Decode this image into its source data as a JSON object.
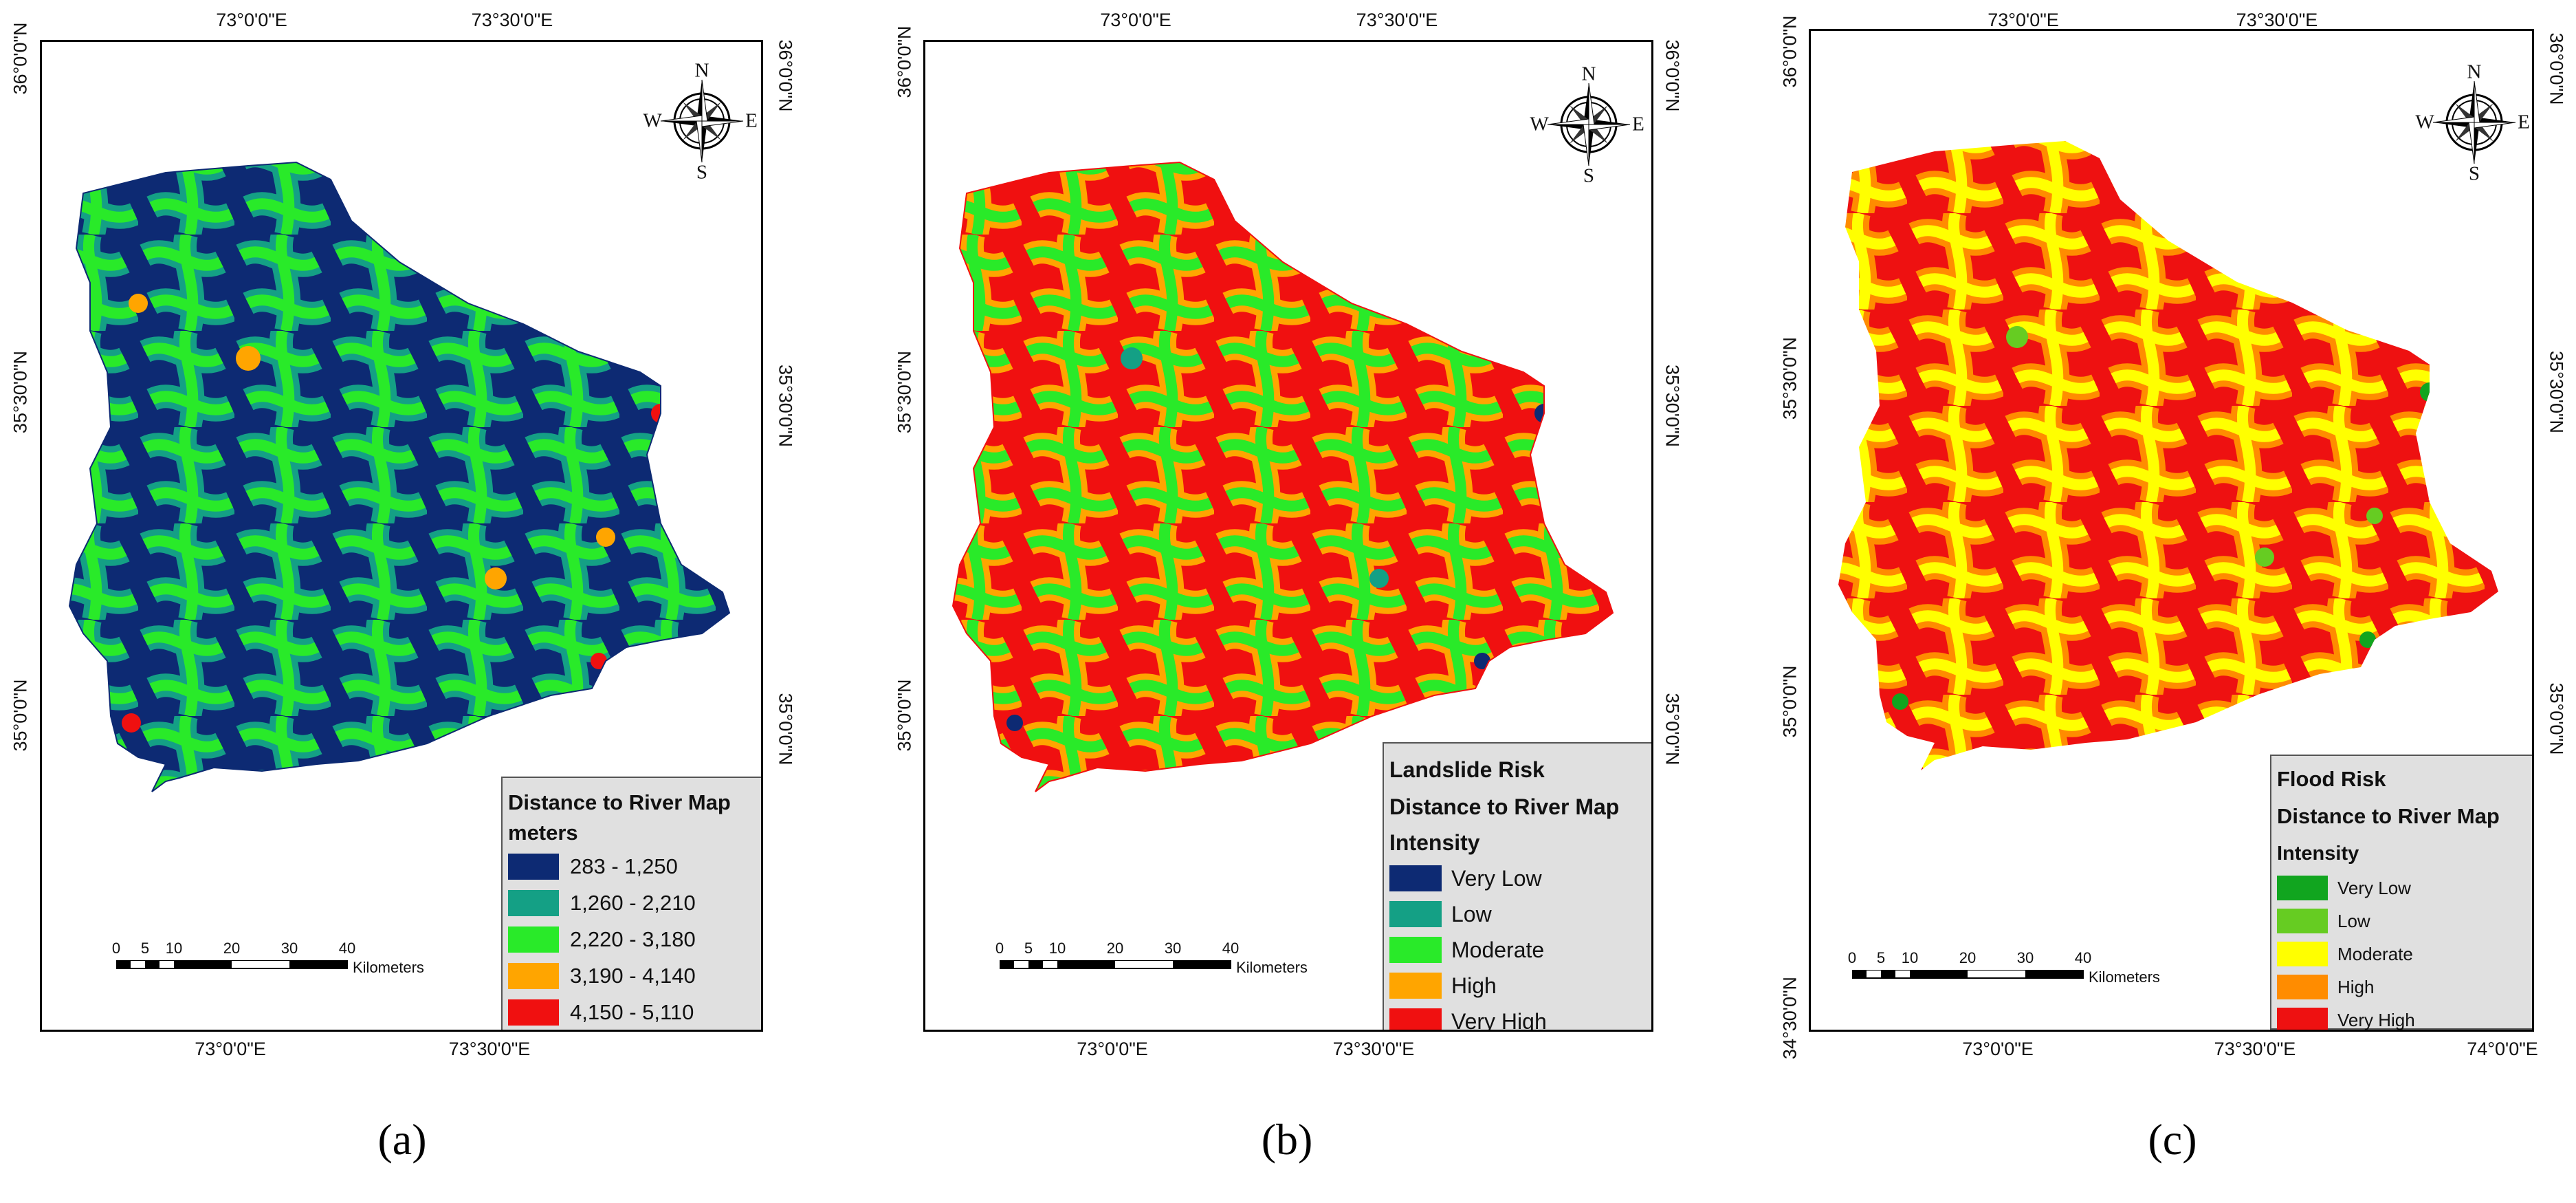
{
  "compass": {
    "n": "N",
    "e": "E",
    "s": "S",
    "w": "W"
  },
  "scale": {
    "ticks": [
      "0",
      "5",
      "10",
      "20",
      "30",
      "40"
    ],
    "unit": "Kilometers"
  },
  "panels": [
    {
      "caption": "(a)",
      "top_labels": [
        "73°0'0\"E",
        "73°30'0\"E"
      ],
      "bottom_labels": [
        "73°0'0\"E",
        "73°30'0\"E"
      ],
      "left_labels": [
        "36°0'0\"N",
        "35°30'0\"N",
        "35°0'0\"N"
      ],
      "right_labels": [
        "36°0'0\"N",
        "35°30'0\"N",
        "35°0'0\"N"
      ],
      "legend": {
        "title_lines": [
          "Distance to River Map",
          "meters"
        ],
        "items": [
          {
            "label": "283 - 1,250",
            "color": "#0d2a73"
          },
          {
            "label": "1,260 - 2,210",
            "color": "#14a085"
          },
          {
            "label": "2,220 - 3,180",
            "color": "#29ea29"
          },
          {
            "label": "3,190 - 4,140",
            "color": "#ffa500"
          },
          {
            "label": "4,150 - 5,110",
            "color": "#f01010"
          }
        ]
      }
    },
    {
      "caption": "(b)",
      "top_labels": [
        "73°0'0\"E",
        "73°30'0\"E"
      ],
      "bottom_labels": [
        "73°0'0\"E",
        "73°30'0\"E"
      ],
      "left_labels": [
        "36°0'0\"N",
        "35°30'0\"N",
        "35°0'0\"N"
      ],
      "right_labels": [
        "36°0'0\"N",
        "35°30'0\"N",
        "35°0'0\"N"
      ],
      "legend": {
        "title_lines": [
          "Landslide Risk",
          "Distance to River Map",
          "Intensity"
        ],
        "items": [
          {
            "label": "Very Low",
            "color": "#0d2a73"
          },
          {
            "label": "Low",
            "color": "#14a085"
          },
          {
            "label": "Moderate",
            "color": "#29ea29"
          },
          {
            "label": "High",
            "color": "#ffa500"
          },
          {
            "label": "Very High",
            "color": "#f01010"
          }
        ]
      }
    },
    {
      "caption": "(c)",
      "top_labels": [
        "73°0'0\"E",
        "73°30'0\"E"
      ],
      "bottom_labels": [
        "73°0'0\"E",
        "73°30'0\"E",
        "74°0'0\"E"
      ],
      "left_labels": [
        "36°0'0\"N",
        "35°30'0\"N",
        "35°0'0\"N",
        "34°30'0\"N"
      ],
      "right_labels": [
        "36°0'0\"N",
        "35°30'0\"N",
        "35°0'0\"N"
      ],
      "legend": {
        "title_lines": [
          "Flood Risk",
          "Distance to River Map",
          "Intensity"
        ],
        "items": [
          {
            "label": "Very Low",
            "color": "#11a51f"
          },
          {
            "label": "Low",
            "color": "#66cc22"
          },
          {
            "label": "Moderate",
            "color": "#ffff00"
          },
          {
            "label": "High",
            "color": "#ff8c00"
          },
          {
            "label": "Very High",
            "color": "#ee1111"
          }
        ]
      }
    }
  ]
}
